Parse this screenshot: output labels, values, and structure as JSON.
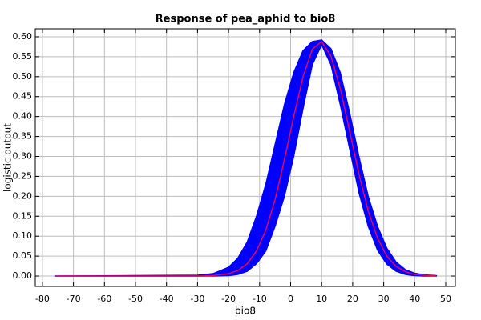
{
  "chart_data": {
    "type": "line",
    "title": "Response of pea_aphid to bio8",
    "xlabel": "bio8",
    "ylabel": "logistic output",
    "x": [
      -76,
      -30,
      -25,
      -20,
      -17,
      -14,
      -11,
      -8,
      -5,
      -2,
      1,
      4,
      7,
      10,
      13,
      16,
      19,
      22,
      25,
      28,
      31,
      34,
      37,
      40,
      43,
      47
    ],
    "band": {
      "color": "#0000ff",
      "lower": [
        0,
        0,
        0,
        0.001,
        0.004,
        0.012,
        0.031,
        0.063,
        0.125,
        0.2,
        0.3,
        0.42,
        0.53,
        0.58,
        0.53,
        0.43,
        0.32,
        0.21,
        0.125,
        0.065,
        0.03,
        0.012,
        0.004,
        0.001,
        0,
        0
      ],
      "upper": [
        0,
        0.002,
        0.006,
        0.022,
        0.045,
        0.085,
        0.15,
        0.23,
        0.33,
        0.43,
        0.51,
        0.565,
        0.588,
        0.592,
        0.57,
        0.51,
        0.41,
        0.3,
        0.2,
        0.125,
        0.07,
        0.035,
        0.016,
        0.007,
        0.003,
        0.001
      ]
    },
    "series": [
      {
        "color": "#e8005a",
        "values": [
          0,
          0,
          0.001,
          0.006,
          0.014,
          0.031,
          0.063,
          0.115,
          0.192,
          0.292,
          0.4,
          0.5,
          0.569,
          0.588,
          0.551,
          0.47,
          0.364,
          0.256,
          0.163,
          0.095,
          0.05,
          0.024,
          0.011,
          0.004,
          0.002,
          0
        ]
      }
    ],
    "xlim": [
      -82.3,
      53.1
    ],
    "ylim": [
      -0.026,
      0.62
    ],
    "xticks": [
      -80,
      -70,
      -60,
      -50,
      -40,
      -30,
      -20,
      -10,
      0,
      10,
      20,
      30,
      40,
      50
    ],
    "yticks": [
      {
        "value": 0,
        "label": "0.00"
      },
      0.05,
      {
        "value": 0.1,
        "label": "0.10"
      },
      0.15,
      {
        "value": 0.2,
        "label": "0.20"
      },
      0.25,
      {
        "value": 0.3,
        "label": "0.30"
      },
      0.35,
      {
        "value": 0.4,
        "label": "0.40"
      },
      0.45,
      {
        "value": 0.5,
        "label": "0.50"
      },
      0.55,
      {
        "value": 0.6,
        "label": "0.60"
      }
    ],
    "grid": true
  }
}
